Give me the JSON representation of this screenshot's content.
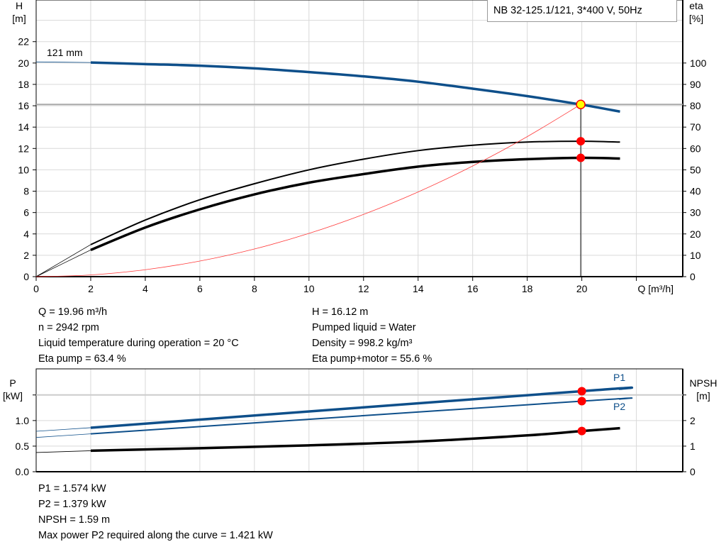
{
  "title": "NB 32-125.1/121, 3*400 V, 50Hz",
  "info_top_left": [
    "Q = 19.96 m³/h",
    "n = 2942 rpm",
    "Liquid temperature during operation = 20 °C",
    "Eta pump = 63.4 %"
  ],
  "info_top_right": [
    "H = 16.12 m",
    "Pumped liquid = Water",
    "Density = 998.2 kg/m³",
    "Eta pump+motor = 55.6 %"
  ],
  "info_bottom": [
    "P1 = 1.574 kW",
    "P2 = 1.379 kW",
    "NPSH = 1.59 m",
    "Max power P2 required along the curve = 1.421 kW"
  ],
  "colors": {
    "head": "#0e4f8a",
    "power": "#0e4f8a",
    "efficiency": "#000000",
    "npsh": "#000000",
    "system": "#ff3b3b",
    "duty_point": "#ffff00",
    "marker": "#ff0000",
    "grid": "#d9d9d9"
  },
  "chart_data": [
    {
      "type": "line",
      "xlabel": "Q [m³/h]",
      "ylabel_left": "H\n[m]",
      "ylabel_right": "eta\n[%]",
      "xlim": [
        0,
        23.7
      ],
      "ylim_left": [
        0,
        25.9
      ],
      "ylim_right": [
        0,
        129.5
      ],
      "xticks": [
        0,
        2,
        4,
        6,
        8,
        10,
        12,
        14,
        16,
        18,
        20
      ],
      "yticks_left": [
        0,
        2,
        4,
        6,
        8,
        10,
        12,
        14,
        16,
        18,
        20,
        22
      ],
      "yticks_right": [
        0,
        10,
        20,
        30,
        40,
        50,
        60,
        70,
        80,
        90,
        100
      ],
      "grid": true,
      "annotation": "121 mm",
      "duty_point": {
        "Q": 19.96,
        "H": 16.12,
        "eta_pump": 63.4,
        "eta_pump_motor": 55.6
      },
      "series": [
        {
          "axis": "left",
          "role": "head",
          "x": [
            0,
            2,
            4,
            6,
            8,
            10,
            12,
            14,
            16,
            18,
            20,
            21.4
          ],
          "y": [
            20.1,
            20.05,
            19.9,
            19.75,
            19.5,
            19.15,
            18.75,
            18.25,
            17.6,
            16.9,
            16.1,
            15.45
          ]
        },
        {
          "axis": "right",
          "role": "eta_pump",
          "x": [
            0,
            2,
            4,
            6,
            8,
            10,
            12,
            14,
            16,
            18,
            20,
            21.4
          ],
          "y": [
            0,
            15,
            26.5,
            36,
            43.5,
            50,
            55,
            59,
            61.5,
            63,
            63.4,
            63
          ]
        },
        {
          "axis": "right",
          "role": "eta_pump_motor",
          "x": [
            0,
            2,
            4,
            6,
            8,
            10,
            12,
            14,
            16,
            18,
            20,
            21.4
          ],
          "y": [
            0,
            12.5,
            23,
            31.5,
            38.5,
            44,
            48,
            51.5,
            53.7,
            55,
            55.6,
            55.3
          ]
        },
        {
          "axis": "left",
          "role": "system",
          "x": [
            0,
            2,
            4,
            6,
            8,
            10,
            12,
            14,
            16,
            18,
            19.96
          ],
          "y": [
            0,
            0.16,
            0.65,
            1.46,
            2.59,
            4.05,
            5.83,
            7.93,
            10.36,
            13.11,
            16.12
          ]
        }
      ]
    },
    {
      "type": "line",
      "ylabel_left": "P\n[kW]",
      "ylabel_right": "NPSH\n[m]",
      "xlim": [
        0,
        23.7
      ],
      "ylim_left": [
        0,
        2.01
      ],
      "ylim_right": [
        0,
        4.02
      ],
      "yticks_left": [
        0,
        0.5,
        1.0,
        1.5
      ],
      "yticklabels_left": [
        "0.0",
        "0.5",
        "1.0",
        ""
      ],
      "yticks_right": [
        0,
        1,
        2,
        3
      ],
      "yticklabels_right": [
        "0",
        "1",
        "2",
        ""
      ],
      "grid": true,
      "series": [
        {
          "axis": "left",
          "name": "P1",
          "x": [
            0,
            2,
            20,
            21.4
          ],
          "y": [
            0.79,
            0.86,
            1.574,
            1.62
          ]
        },
        {
          "axis": "left",
          "name": "P2",
          "x": [
            0,
            2,
            20,
            21.4
          ],
          "y": [
            0.67,
            0.74,
            1.379,
            1.42
          ]
        },
        {
          "axis": "right",
          "role": "npsh",
          "x": [
            0,
            2,
            6,
            10,
            14,
            18,
            20,
            21.4
          ],
          "y": [
            0.75,
            0.82,
            0.92,
            1.03,
            1.18,
            1.42,
            1.59,
            1.7
          ]
        }
      ]
    }
  ]
}
